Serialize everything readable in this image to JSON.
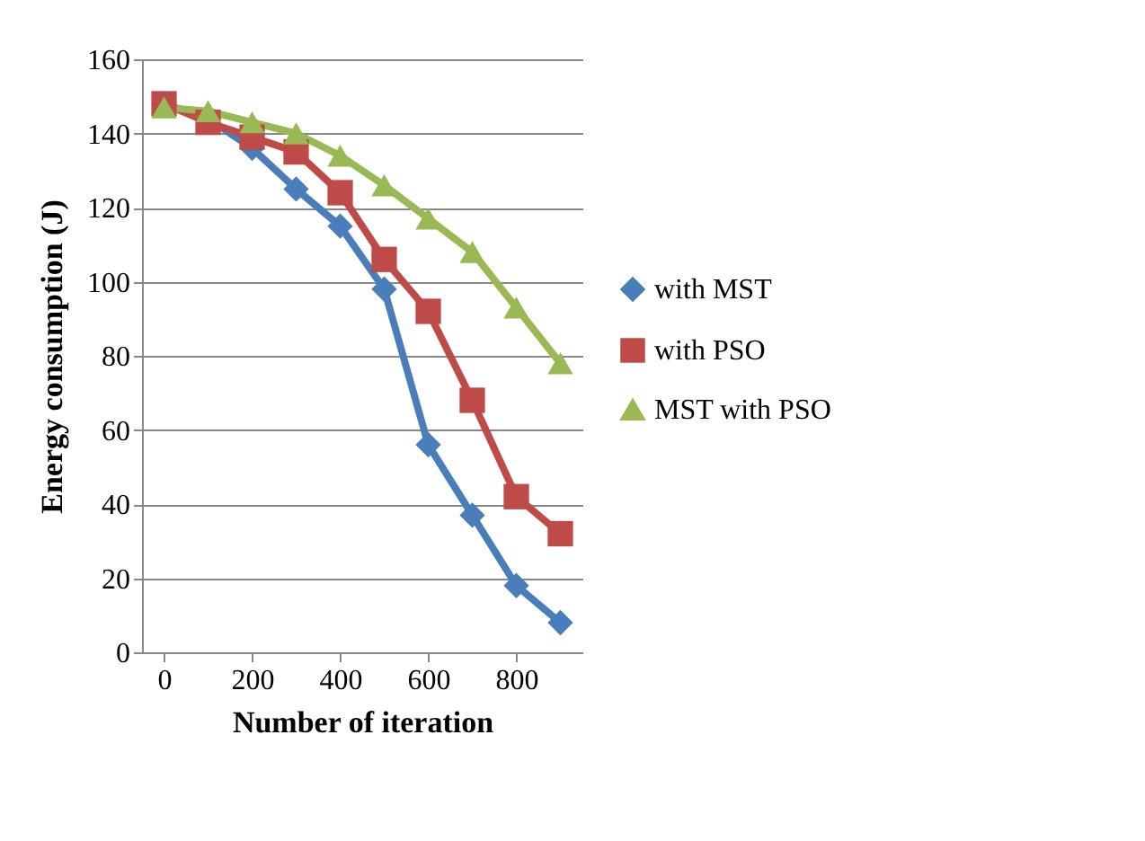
{
  "chart_data": {
    "type": "line",
    "xlabel": "Number of iteration",
    "ylabel": "Energy consumption (J)",
    "x": [
      0,
      100,
      200,
      300,
      400,
      500,
      600,
      700,
      800,
      900
    ],
    "xlim": [
      -50,
      950
    ],
    "xticks": [
      0,
      200,
      400,
      600,
      800
    ],
    "ylim": [
      0,
      160
    ],
    "yticks": [
      0,
      20,
      40,
      60,
      80,
      100,
      120,
      140,
      160
    ],
    "grid": "y",
    "legend": "right",
    "series": [
      {
        "name": "with MST",
        "color": "#4a7ebb",
        "marker": "diamond",
        "values": [
          148,
          144,
          136,
          125,
          115,
          98,
          56,
          37,
          18,
          8
        ]
      },
      {
        "name": "with PSO",
        "color": "#be4b48",
        "marker": "square",
        "values": [
          148,
          143,
          139,
          135,
          124,
          106,
          92,
          68,
          42,
          32
        ]
      },
      {
        "name": "MST with PSO",
        "color": "#98b954",
        "marker": "triangle",
        "values": [
          147,
          146,
          143,
          140,
          134,
          126,
          117,
          108,
          93,
          78
        ]
      }
    ]
  }
}
